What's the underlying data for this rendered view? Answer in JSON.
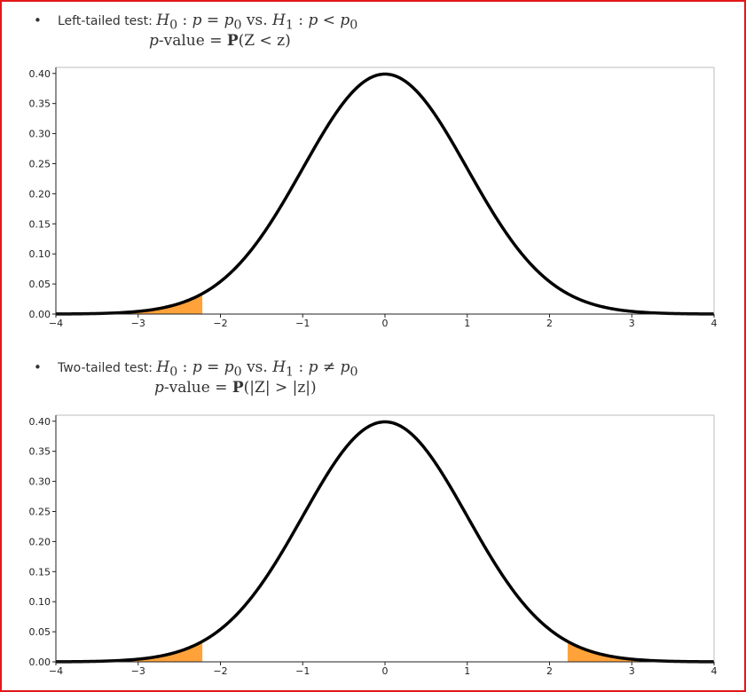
{
  "panels": [
    {
      "bullet": "•",
      "test_label": "Left-tailed test: ",
      "hypothesis": {
        "h0": "H",
        "h0_sub": "0",
        "h0_rel": " : ",
        "p_var": "p",
        "eq": " = ",
        "p0": "p",
        "p0_sub": "0",
        "vs": " vs. ",
        "h1": "H",
        "h1_sub": "1",
        "h1_rel": " : ",
        "p_var2": "p",
        "alt_op": " < ",
        "p0b": "p",
        "p0b_sub": "0"
      },
      "pvalue": {
        "p_letter": "p",
        "value_word": "-value = ",
        "prob": "P",
        "expr": "(Z < z)"
      }
    },
    {
      "bullet": "•",
      "test_label": "Two-tailed test: ",
      "hypothesis": {
        "h0": "H",
        "h0_sub": "0",
        "h0_rel": " : ",
        "p_var": "p",
        "eq": " = ",
        "p0": "p",
        "p0_sub": "0",
        "vs": " vs. ",
        "h1": "H",
        "h1_sub": "1",
        "h1_rel": " : ",
        "p_var2": "p",
        "alt_op": " ≠ ",
        "p0b": "p",
        "p0b_sub": "0"
      },
      "pvalue": {
        "p_letter": "p",
        "value_word": "-value = ",
        "prob": "P",
        "expr": "(|Z| > |z|)"
      }
    }
  ],
  "colors": {
    "border": "#e3171a",
    "curve": "#000000",
    "shade": "#ffa23a",
    "axes_frame": "#bdbdbd"
  },
  "chart_data": [
    {
      "type": "area",
      "xlim": [
        -4,
        4
      ],
      "ylim": [
        0,
        0.41
      ],
      "x_ticks": [
        -4,
        -3,
        -2,
        -1,
        0,
        1,
        2,
        3,
        4
      ],
      "x_tick_labels": [
        "−4",
        "−3",
        "−2",
        "−1",
        "0",
        "1",
        "2",
        "3",
        "4"
      ],
      "y_ticks": [
        0,
        0.05,
        0.1,
        0.15,
        0.2,
        0.25,
        0.3,
        0.35,
        0.4
      ],
      "y_tick_labels": [
        "0.00",
        "0.05",
        "0.10",
        "0.15",
        "0.20",
        "0.25",
        "0.30",
        "0.35",
        "0.40"
      ],
      "curve": "standard normal density",
      "shaded_regions": [
        [
          -4,
          -2.22
        ]
      ],
      "grid": false
    },
    {
      "type": "area",
      "xlim": [
        -4,
        4
      ],
      "ylim": [
        0,
        0.41
      ],
      "x_ticks": [
        -4,
        -3,
        -2,
        -1,
        0,
        1,
        2,
        3,
        4
      ],
      "x_tick_labels": [
        "−4",
        "−3",
        "−2",
        "−1",
        "0",
        "1",
        "2",
        "3",
        "4"
      ],
      "y_ticks": [
        0,
        0.05,
        0.1,
        0.15,
        0.2,
        0.25,
        0.3,
        0.35,
        0.4
      ],
      "y_tick_labels": [
        "0.00",
        "0.05",
        "0.10",
        "0.15",
        "0.20",
        "0.25",
        "0.30",
        "0.35",
        "0.40"
      ],
      "curve": "standard normal density",
      "shaded_regions": [
        [
          -4,
          -2.22
        ],
        [
          2.22,
          4
        ]
      ],
      "grid": false
    }
  ]
}
